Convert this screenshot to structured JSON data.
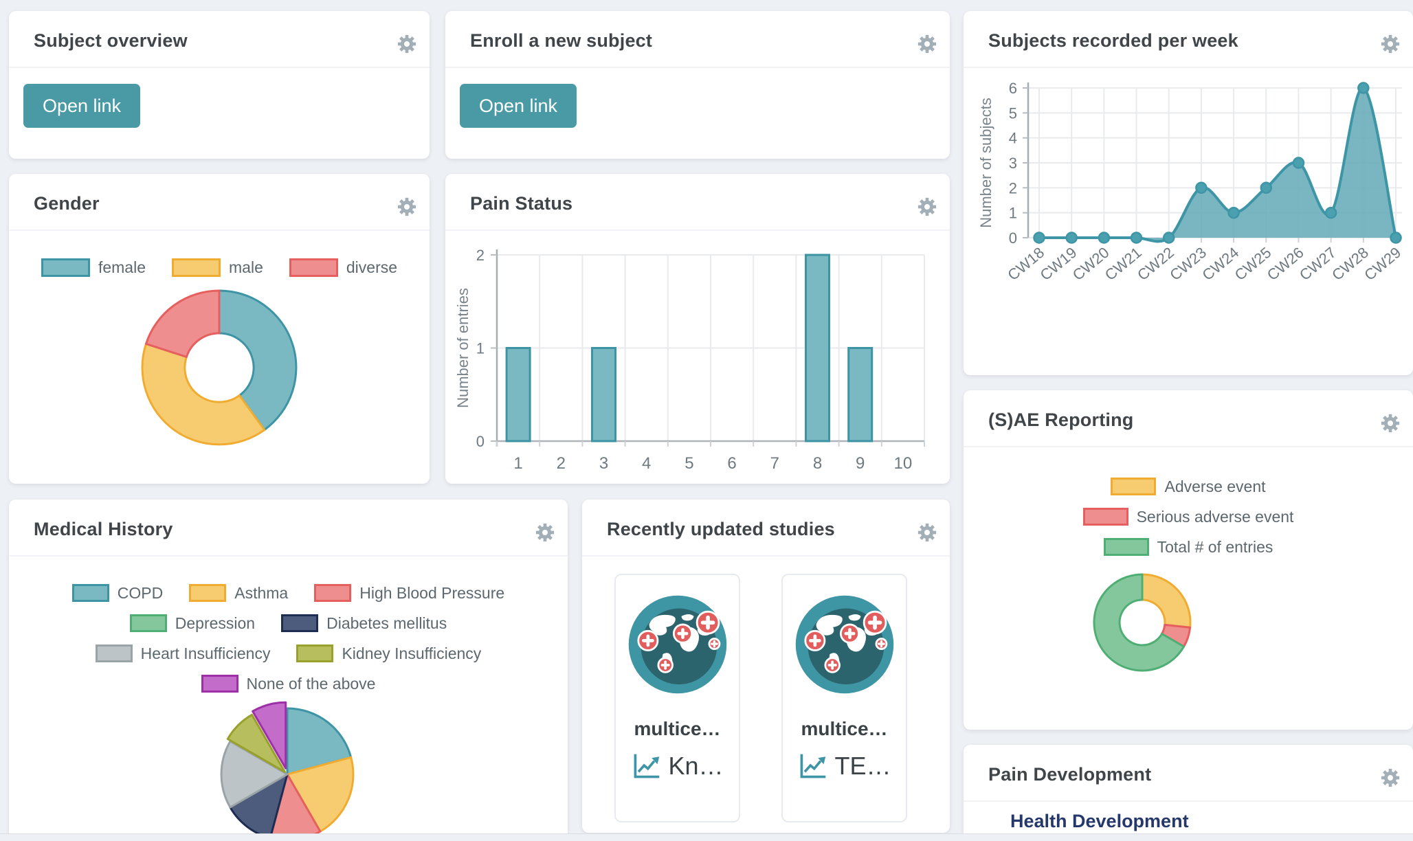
{
  "page": {
    "background": "#edf0f4",
    "accent_teal": "#4a9aa6"
  },
  "cards": {
    "subject_overview": {
      "title": "Subject overview",
      "button_label": "Open link"
    },
    "enroll_new_subject": {
      "title": "Enroll a new subject",
      "button_label": "Open link"
    },
    "subjects_recorded_per_week": {
      "title": "Subjects recorded per week"
    },
    "gender": {
      "title": "Gender"
    },
    "pain_status": {
      "title": "Pain Status"
    },
    "medical_history": {
      "title": "Medical History"
    },
    "recently_updated_studies": {
      "title": "Recently updated studies",
      "studies": [
        {
          "name": "multice…",
          "metric": "Kn…"
        },
        {
          "name": "multice…",
          "metric": "TE…"
        }
      ]
    },
    "sae_reporting": {
      "title": "(S)AE Reporting"
    },
    "pain_development": {
      "title": "Pain Development",
      "subtitle": "Health Development"
    }
  },
  "chart_data": [
    {
      "name": "subjects_recorded_per_week",
      "type": "area",
      "x": [
        "CW18",
        "CW19",
        "CW20",
        "CW21",
        "CW22",
        "CW23",
        "CW24",
        "CW25",
        "CW26",
        "CW27",
        "CW28",
        "CW29"
      ],
      "values": [
        0,
        0,
        0,
        0,
        0,
        2,
        1,
        2,
        3,
        1,
        6,
        0
      ],
      "title": "Subjects recorded per week",
      "xlabel": "",
      "ylabel": "Number of subjects",
      "ylim": [
        0,
        6
      ],
      "yticks": [
        0,
        1,
        2,
        3,
        4,
        5,
        6
      ],
      "grid": true,
      "line_color": "#3e95a5",
      "fill_color": "rgba(104,172,184,0.88)",
      "point_color": "#4aa0af"
    },
    {
      "name": "gender",
      "type": "donut",
      "labels": [
        "female",
        "male",
        "diverse"
      ],
      "values": [
        2,
        2,
        1
      ],
      "legend_position": "top",
      "fills": [
        "#7ab8c2",
        "#f7cc70",
        "#ef8e8e"
      ],
      "borders": [
        "#3d94a4",
        "#f0ac31",
        "#e65f5f"
      ]
    },
    {
      "name": "pain_status",
      "type": "bar",
      "categories": [
        "1",
        "2",
        "3",
        "4",
        "5",
        "6",
        "7",
        "8",
        "9",
        "10"
      ],
      "values": [
        1,
        0,
        1,
        0,
        0,
        0,
        0,
        2,
        1,
        0
      ],
      "title": "Pain Status",
      "xlabel": "",
      "ylabel": "Number of entries",
      "ylim": [
        0,
        2
      ],
      "yticks": [
        0,
        1,
        2
      ],
      "grid": true,
      "bar_fill": "#7ab8c2",
      "bar_border": "#3d94a4"
    },
    {
      "name": "medical_history",
      "type": "pie",
      "labels": [
        "COPD",
        "Asthma",
        "High Blood Pressure",
        "Depression",
        "Diabetes mellitus",
        "Heart Insufficiency",
        "Kidney Insufficiency",
        "None of the above"
      ],
      "values": [
        5,
        5,
        3,
        0,
        3,
        4,
        2,
        2
      ],
      "legend_position": "top",
      "fills": [
        "#7ab8c2",
        "#f7cc70",
        "#ef8e8e",
        "#85c79d",
        "#4d5b7c",
        "#bdc4c7",
        "#b7be5d",
        "#c46cca"
      ],
      "borders": [
        "#3d94a4",
        "#f0ac31",
        "#e65f5f",
        "#4fae73",
        "#1d2c51",
        "#9aa4a7",
        "#97a12b",
        "#9d2fa7"
      ]
    },
    {
      "name": "sae_reporting",
      "type": "donut",
      "labels": [
        "Adverse event",
        "Serious adverse event",
        "Total # of entries"
      ],
      "values": [
        4,
        1,
        10
      ],
      "legend_position": "top",
      "fills": [
        "#f7cc70",
        "#ef8e8e",
        "#85c79d"
      ],
      "borders": [
        "#f0ac31",
        "#e65f5f",
        "#4fae73"
      ]
    }
  ]
}
